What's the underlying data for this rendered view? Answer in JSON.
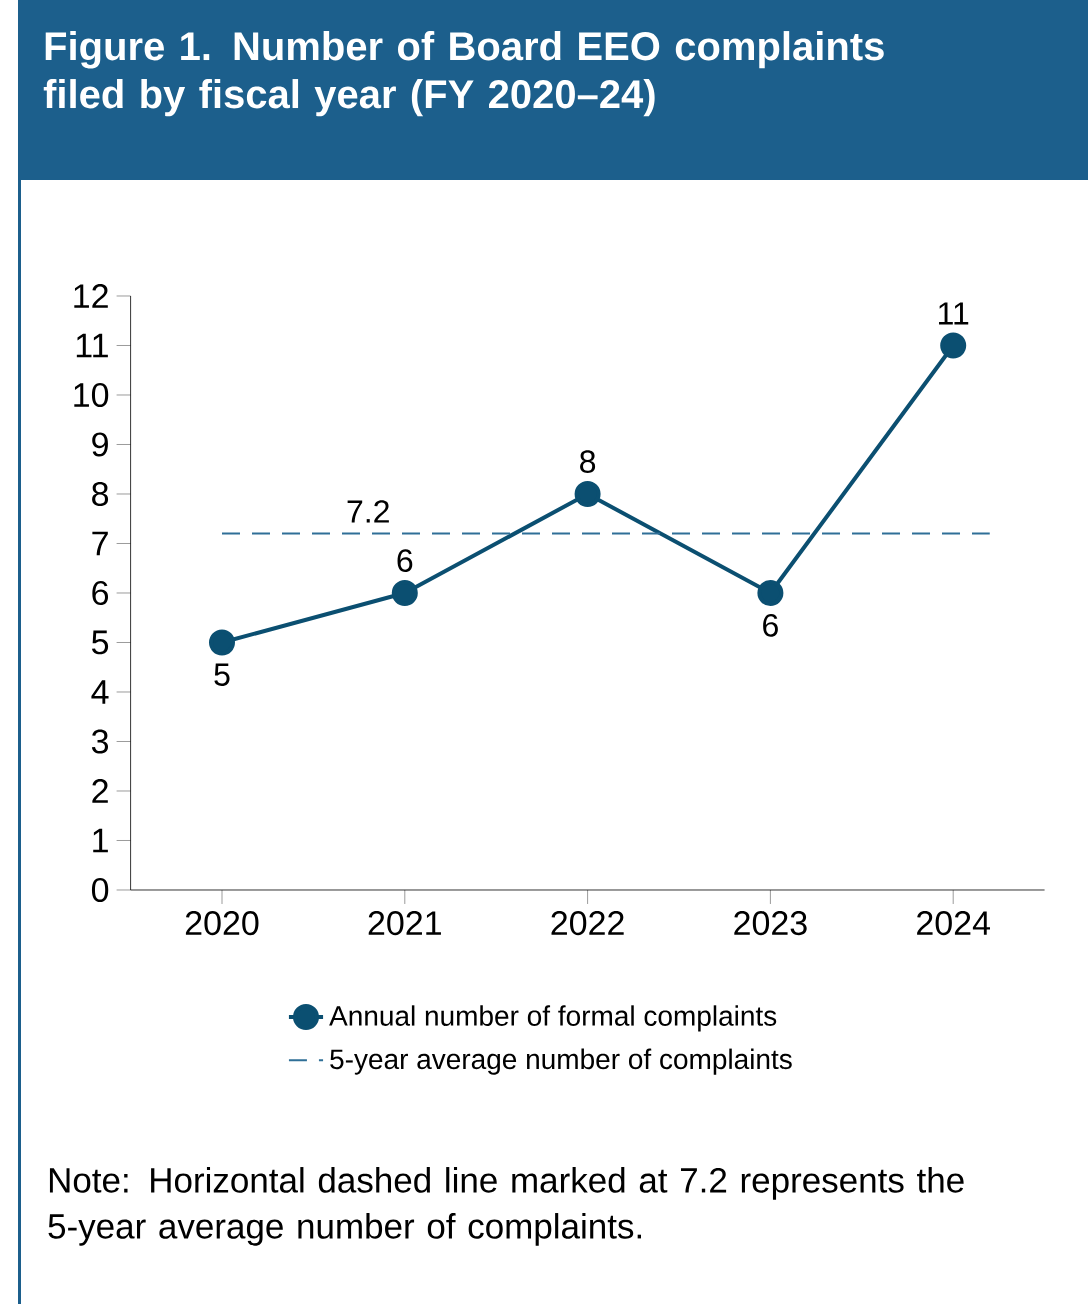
{
  "chart_data": {
    "type": "line",
    "title": "Figure 1. Number of Board EEO complaints filed by fiscal year (FY 2020–24)",
    "categories": [
      "2020",
      "2021",
      "2022",
      "2023",
      "2024"
    ],
    "series": [
      {
        "name": "Annual number of formal complaints",
        "color": "#0b4f71",
        "values": [
          5,
          6,
          8,
          6,
          11
        ]
      }
    ],
    "ylim": [
      0,
      12
    ],
    "yticks": [
      0,
      1,
      2,
      3,
      4,
      5,
      6,
      7,
      8,
      9,
      10,
      11,
      12
    ],
    "ref_lines": [
      {
        "axis": "y",
        "value": 7.2,
        "label": "5-year average number of complaints",
        "color": "#2f6f97",
        "line_style": "dashed"
      }
    ],
    "data_labels": true,
    "marker": "circle",
    "line_style": "solid",
    "legend": "bottom",
    "grid": false,
    "annotations": [
      {
        "text": "7.2",
        "y": 7.2
      },
      "Note: Horizontal dashed line marked at 7.2 represents the 5-year average number of complaints."
    ]
  }
}
